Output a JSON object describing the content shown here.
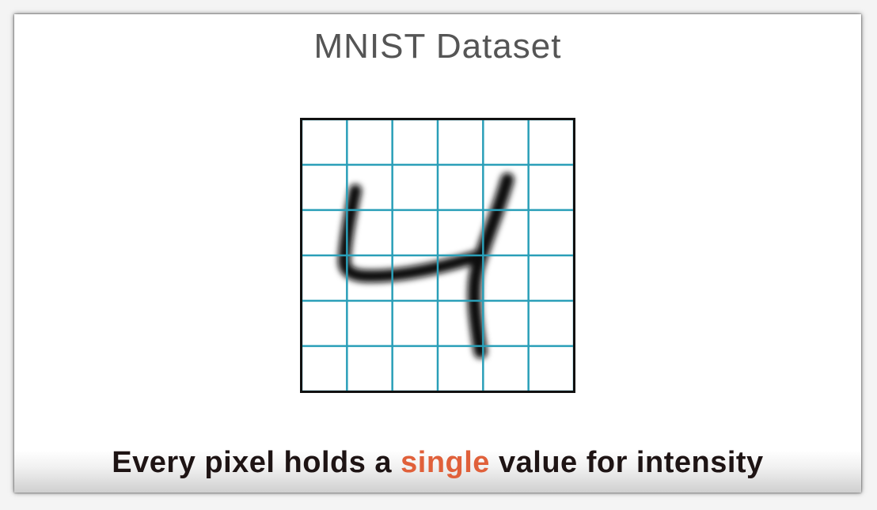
{
  "title": "MNIST Dataset",
  "caption": {
    "before": "Every pixel holds a ",
    "highlight": "single",
    "after": " value for intensity"
  },
  "colors": {
    "grid_line": "#2a9fb8",
    "border": "#111111",
    "digit_stroke": "#111111",
    "highlight": "#e0603a",
    "caption_text": "#1e1414",
    "title_text": "#555555"
  },
  "grid": {
    "rows": 6,
    "cols": 6
  },
  "image": {
    "depicted_digit": "4"
  }
}
